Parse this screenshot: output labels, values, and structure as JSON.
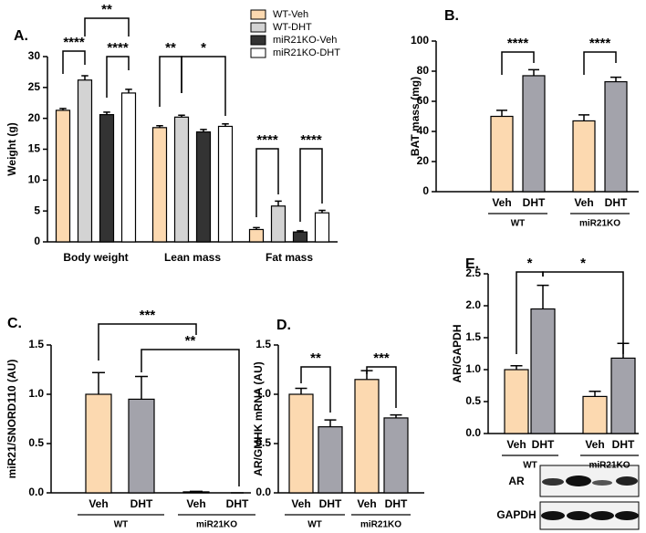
{
  "chart_data": [
    {
      "type": "grouped_bar",
      "panel_label": "A.",
      "ylabel": "Weight (g)",
      "categories": [
        "Body weight",
        "Lean mass",
        "Fat mass"
      ],
      "series": [
        {
          "name": "WT-Veh",
          "color": "#fcd9b0",
          "values": [
            21.3,
            18.5,
            2.0
          ],
          "errors": [
            0.3,
            0.3,
            0.3
          ]
        },
        {
          "name": "WT-DHT",
          "color": "#d3d3d3",
          "values": [
            26.2,
            20.2,
            5.8
          ],
          "errors": [
            0.7,
            0.3,
            0.8
          ]
        },
        {
          "name": "miR21KO-Veh",
          "color": "#333333",
          "values": [
            20.6,
            17.8,
            1.6
          ],
          "errors": [
            0.4,
            0.4,
            0.2
          ]
        },
        {
          "name": "miR21KO-DHT",
          "color": "#ffffff",
          "values": [
            24.1,
            18.7,
            4.7
          ],
          "errors": [
            0.6,
            0.4,
            0.4
          ]
        }
      ],
      "ylim": [
        0,
        30
      ],
      "yticks": [
        0,
        5,
        10,
        15,
        20,
        25,
        30
      ],
      "annotations": [
        "****",
        "**",
        "****",
        "**",
        "*",
        "****",
        "****"
      ]
    },
    {
      "type": "bar",
      "panel_label": "B.",
      "ylabel": "BAT mass (mg)",
      "categories": [
        "Veh",
        "DHT",
        "Veh",
        "DHT"
      ],
      "groups": [
        "WT",
        "miR21KO"
      ],
      "values": [
        50,
        77,
        47,
        73
      ],
      "errors": [
        4,
        4,
        4,
        3
      ],
      "colors": [
        "#fcd9b0",
        "#a3a3ab",
        "#fcd9b0",
        "#a3a3ab"
      ],
      "ylim": [
        0,
        100
      ],
      "yticks": [
        0,
        20,
        40,
        60,
        80,
        100
      ],
      "annotations": [
        "****",
        "****"
      ]
    },
    {
      "type": "bar",
      "panel_label": "C.",
      "ylabel": "miR21/SNORD110 (AU)",
      "categories": [
        "Veh",
        "DHT",
        "Veh",
        "DHT"
      ],
      "groups": [
        "WT",
        "miR21KO"
      ],
      "values": [
        1.0,
        0.95,
        0.01,
        0.0
      ],
      "errors": [
        0.22,
        0.23,
        0.005,
        0.0
      ],
      "colors": [
        "#fcd9b0",
        "#a3a3ab",
        "#fcd9b0",
        "#a3a3ab"
      ],
      "ylim": [
        0,
        1.5
      ],
      "yticks": [
        {
          "value": 0,
          "label": "0.0"
        },
        0.5,
        {
          "value": 1,
          "label": "1.0"
        },
        1.5
      ],
      "annotations": [
        "***",
        "**"
      ]
    },
    {
      "type": "bar",
      "panel_label": "D.",
      "ylabel": "AR/GMHK mRNA (AU)",
      "categories": [
        "Veh",
        "DHT",
        "Veh",
        "DHT"
      ],
      "groups": [
        "WT",
        "miR21KO"
      ],
      "values": [
        1.0,
        0.67,
        1.15,
        0.76
      ],
      "errors": [
        0.06,
        0.07,
        0.09,
        0.03
      ],
      "colors": [
        "#fcd9b0",
        "#a3a3ab",
        "#fcd9b0",
        "#a3a3ab"
      ],
      "ylim": [
        0,
        1.5
      ],
      "yticks": [
        {
          "value": 0,
          "label": "0.0"
        },
        0.5,
        {
          "value": 1,
          "label": "1.0"
        },
        1.5
      ],
      "annotations": [
        "**",
        "***"
      ]
    },
    {
      "type": "bar",
      "panel_label": "E.",
      "ylabel": "AR/GAPDH",
      "categories": [
        "Veh",
        "DHT",
        "Veh",
        "DHT"
      ],
      "groups": [
        "WT",
        "miR21KO"
      ],
      "values": [
        1.0,
        1.95,
        0.58,
        1.18
      ],
      "errors": [
        0.06,
        0.37,
        0.08,
        0.23
      ],
      "colors": [
        "#fcd9b0",
        "#a3a3ab",
        "#fcd9b0",
        "#a3a3ab"
      ],
      "ylim": [
        0,
        2.5
      ],
      "yticks": [
        {
          "value": 0,
          "label": "0.0"
        },
        0.5,
        {
          "value": 1,
          "label": "1.0"
        },
        1.5,
        {
          "value": 2,
          "label": "2.0"
        },
        2.5
      ],
      "annotations": [
        "*",
        "*"
      ],
      "blot_labels": [
        "AR",
        "GAPDH"
      ]
    }
  ]
}
